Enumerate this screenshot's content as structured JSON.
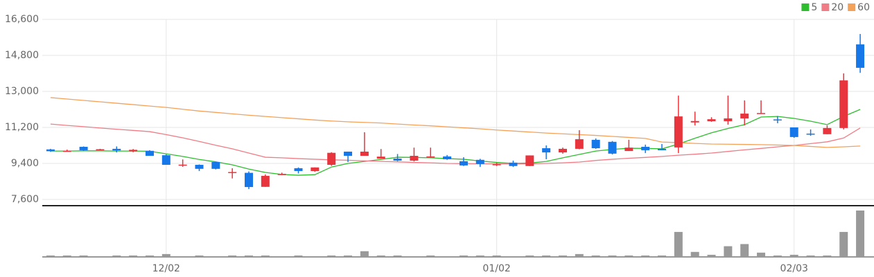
{
  "chart_data": {
    "type": "candlestick",
    "categories": [
      null,
      null,
      null,
      null,
      null,
      null,
      null,
      "12/02",
      null,
      null,
      null,
      null,
      null,
      null,
      null,
      null,
      null,
      null,
      null,
      null,
      null,
      null,
      null,
      null,
      null,
      null,
      null,
      "01/02",
      null,
      null,
      null,
      null,
      null,
      null,
      null,
      null,
      null,
      null,
      null,
      null,
      null,
      null,
      null,
      null,
      null,
      "02/03",
      null,
      null,
      null,
      null
    ],
    "open": [
      10100,
      10000,
      10230,
      10080,
      10130,
      10000,
      10030,
      9810,
      9300,
      9330,
      9470,
      8930,
      8930,
      8230,
      8820,
      9160,
      9020,
      9330,
      9990,
      9780,
      9640,
      9640,
      9540,
      9720,
      9750,
      9510,
      9580,
      9330,
      9440,
      9270,
      10160,
      9950,
      10130,
      10580,
      10480,
      10020,
      10230,
      10130,
      10200,
      11450,
      11510,
      11510,
      11650,
      11890,
      11600,
      11200,
      10890,
      10860,
      11170,
      15350
    ],
    "high": [
      10130,
      10090,
      10250,
      10130,
      10250,
      10120,
      10060,
      9850,
      9600,
      9350,
      9480,
      9160,
      9000,
      8850,
      8940,
      9200,
      9200,
      9960,
      9990,
      10960,
      10120,
      9870,
      10190,
      10190,
      9820,
      9710,
      9630,
      9440,
      9540,
      9800,
      10300,
      10190,
      11060,
      10650,
      10520,
      10580,
      10340,
      10370,
      12790,
      11990,
      11710,
      12790,
      12550,
      12550,
      11770,
      11200,
      11100,
      11300,
      13900,
      15870
    ],
    "low": [
      9980,
      9990,
      10030,
      10080,
      9950,
      9960,
      9780,
      9330,
      9230,
      9020,
      9100,
      8650,
      8120,
      8230,
      8820,
      8900,
      8980,
      9280,
      9470,
      9780,
      9640,
      9510,
      9500,
      9680,
      9580,
      9270,
      9230,
      9270,
      9230,
      9270,
      9610,
      9890,
      10110,
      10130,
      9850,
      10020,
      9920,
      10060,
      9920,
      11300,
      11480,
      11340,
      11300,
      11890,
      11410,
      10680,
      10780,
      10860,
      11100,
      13930
    ],
    "close": [
      10010,
      10030,
      10060,
      10110,
      10050,
      10080,
      9780,
      9330,
      9340,
      9130,
      9130,
      8970,
      8220,
      8780,
      8880,
      9020,
      9200,
      9930,
      9780,
      9990,
      9740,
      9540,
      9780,
      9750,
      9610,
      9300,
      9370,
      9360,
      9270,
      9800,
      9950,
      10130,
      10610,
      10160,
      9890,
      10190,
      10060,
      10060,
      11750,
      11520,
      11610,
      11650,
      11890,
      11920,
      11580,
      10720,
      10860,
      11170,
      13550,
      14180
    ],
    "up_color": "#e8343c",
    "down_color": "#1677e8",
    "moving_averages": [
      {
        "name": "5",
        "color": "#2ebd2e",
        "values": [
          10020,
          10020,
          10030,
          10030,
          10020,
          10020,
          10010,
          9880,
          9750,
          9600,
          9480,
          9330,
          9120,
          8950,
          8850,
          8810,
          8840,
          9220,
          9400,
          9500,
          9600,
          9710,
          9700,
          9680,
          9640,
          9610,
          9520,
          9450,
          9400,
          9420,
          9500,
          9680,
          9850,
          10020,
          10100,
          10160,
          10150,
          10130,
          10370,
          10660,
          10930,
          11150,
          11340,
          11720,
          11750,
          11650,
          11510,
          11340,
          11750,
          12100
        ]
      },
      {
        "name": "20",
        "color": "#f07c86",
        "values": [
          11370,
          11300,
          11240,
          11170,
          11110,
          11050,
          10990,
          10840,
          10680,
          10500,
          10310,
          10130,
          9920,
          9710,
          9680,
          9640,
          9610,
          9580,
          9560,
          9530,
          9500,
          9480,
          9450,
          9430,
          9400,
          9390,
          9380,
          9380,
          9370,
          9380,
          9400,
          9430,
          9470,
          9550,
          9610,
          9660,
          9700,
          9750,
          9810,
          9860,
          9920,
          10000,
          10080,
          10150,
          10230,
          10300,
          10390,
          10480,
          10670,
          11170
        ]
      },
      {
        "name": "60",
        "color": "#f4a25a",
        "values": [
          12690,
          12620,
          12550,
          12480,
          12410,
          12340,
          12270,
          12200,
          12110,
          12020,
          11950,
          11880,
          11810,
          11750,
          11690,
          11630,
          11570,
          11520,
          11480,
          11450,
          11420,
          11370,
          11320,
          11280,
          11230,
          11180,
          11130,
          11070,
          11020,
          10970,
          10920,
          10880,
          10840,
          10800,
          10750,
          10700,
          10650,
          10470,
          10440,
          10400,
          10370,
          10360,
          10350,
          10340,
          10320,
          10300,
          10250,
          10200,
          10230,
          10270
        ]
      }
    ],
    "volume": [
      2,
      2,
      2,
      0,
      2,
      2,
      2,
      4,
      0,
      2,
      0,
      2,
      2,
      2,
      0,
      2,
      0,
      2,
      2,
      8,
      2,
      2,
      0,
      2,
      0,
      2,
      2,
      2,
      0,
      2,
      2,
      2,
      4,
      2,
      2,
      2,
      2,
      2,
      35,
      7,
      3,
      15,
      18,
      6,
      2,
      3,
      2,
      2,
      35,
      65
    ],
    "volume_color": "#999999",
    "ylim": [
      7600,
      16600
    ],
    "yticks": [
      {
        "value": 7600,
        "label": "7,600"
      },
      {
        "value": 9400,
        "label": "9,400"
      },
      {
        "value": 11200,
        "label": "11,200"
      },
      {
        "value": 13000,
        "label": "13,000"
      },
      {
        "value": 14800,
        "label": "14,800"
      },
      {
        "value": 16600,
        "label": "16,600"
      }
    ],
    "grid": true,
    "legend": "top-right"
  }
}
